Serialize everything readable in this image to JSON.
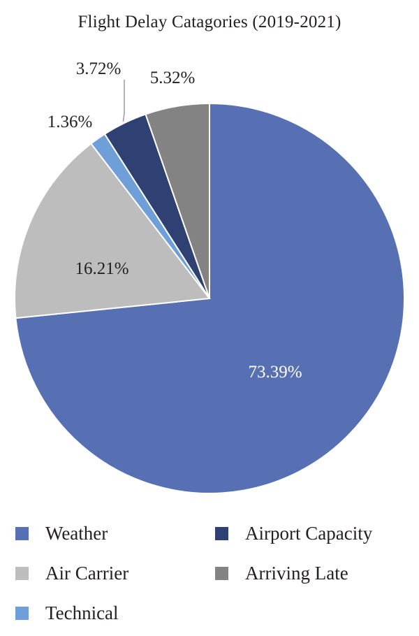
{
  "chart_data": {
    "type": "pie",
    "title": "Flight Delay Catagories (2019-2021)",
    "slices": [
      {
        "name": "Weather",
        "value": 73.39,
        "label": "73.39%",
        "color": "#5670b3"
      },
      {
        "name": "Air Carrier",
        "value": 16.21,
        "label": "16.21%",
        "color": "#bdbdbd"
      },
      {
        "name": "Technical",
        "value": 1.36,
        "label": "1.36%",
        "color": "#6f9fd8"
      },
      {
        "name": "Airport Capacity",
        "value": 3.72,
        "label": "3.72%",
        "color": "#2f4172"
      },
      {
        "name": "Arriving Late",
        "value": 5.32,
        "label": "5.32%",
        "color": "#838383"
      }
    ],
    "start_angle": "12 o'clock",
    "direction": "clockwise",
    "legend_position": "bottom",
    "legend": [
      {
        "name": "Weather",
        "color": "#5670b3"
      },
      {
        "name": "Airport Capacity",
        "color": "#2f4172"
      },
      {
        "name": "Air Carrier",
        "color": "#bdbdbd"
      },
      {
        "name": "Arriving Late",
        "color": "#838383"
      },
      {
        "name": "Technical",
        "color": "#6f9fd8"
      }
    ]
  }
}
